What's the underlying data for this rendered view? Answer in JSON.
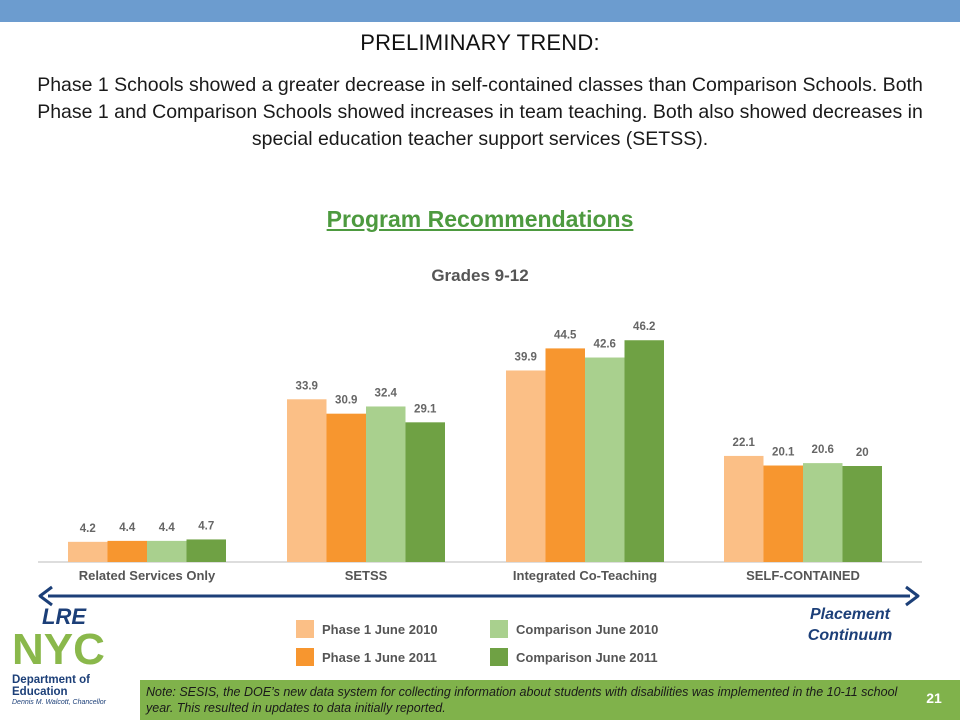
{
  "slide": {
    "heading": "PRELIMINARY TREND:",
    "summary": "Phase 1 Schools showed a greater decrease in self-contained classes than Comparison Schools. Both Phase 1 and Comparison Schools showed increases in team teaching.  Both also showed decreases in special education teacher support services (SETSS).",
    "section_title": "Program Recommendations",
    "lre_label": "LRE",
    "placement_label": "Placement Continuum",
    "footnote": "Note: SESIS, the DOE’s new data system for collecting information about students with disabilities was implemented in the 10-11 school year. This resulted in updates to data initially reported.",
    "page_number": "21"
  },
  "logo": {
    "letters": [
      "N",
      "Y",
      "C"
    ],
    "department_line1": "Department of",
    "department_line2": "Education",
    "chancellor": "Dennis M. Walcott, Chancellor",
    "color": "#8ab84b"
  },
  "colors": {
    "top_bar": "#6c9ccf",
    "arrow": "#1c3f78",
    "section_title": "#4d9a3f",
    "footer": "#80b24b"
  },
  "chart_data": {
    "type": "bar",
    "title": "Grades 9-12",
    "categories": [
      "Related Services Only",
      "SETSS",
      "Integrated Co-Teaching",
      "SELF-CONTAINED"
    ],
    "series": [
      {
        "name": "Phase 1 June 2010",
        "color": "#fbbf86",
        "values": [
          4.2,
          33.9,
          39.9,
          22.1
        ]
      },
      {
        "name": "Phase 1 June 2011",
        "color": "#f7962f",
        "values": [
          4.4,
          30.9,
          44.5,
          20.1
        ]
      },
      {
        "name": "Comparison June 2010",
        "color": "#a9d08e",
        "values": [
          4.4,
          32.4,
          42.6,
          20.6
        ]
      },
      {
        "name": "Comparison June 2011",
        "color": "#6fa144",
        "values": [
          4.7,
          29.1,
          46.2,
          20
        ]
      }
    ],
    "data_labels": [
      [
        "4.2",
        "33.9",
        "39.9",
        "22.1"
      ],
      [
        "4.4",
        "30.9",
        "44.5",
        "20.1"
      ],
      [
        "4.4",
        "32.4",
        "42.6",
        "20.6"
      ],
      [
        "4.7",
        "29.1",
        "46.2",
        "20"
      ]
    ],
    "ylim": [
      0,
      50
    ],
    "grid": false,
    "legend": "bottom"
  }
}
